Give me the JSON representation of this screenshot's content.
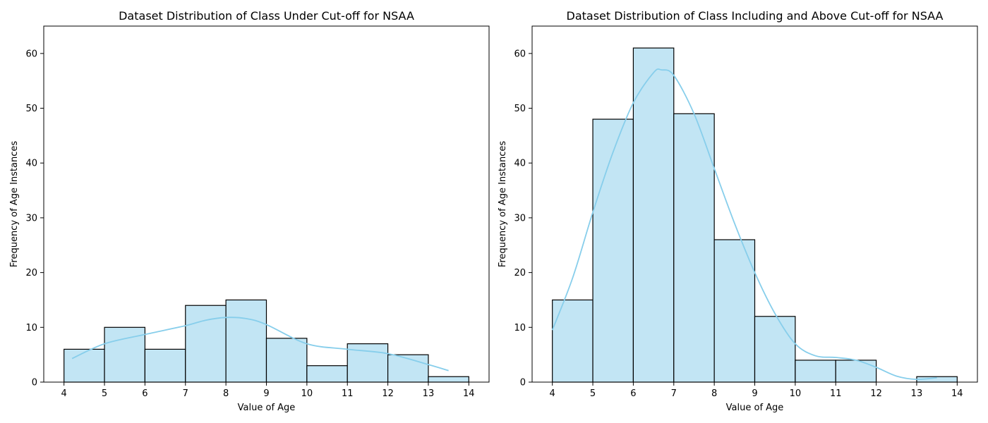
{
  "chart_data": [
    {
      "type": "bar",
      "subtype": "histogram",
      "title": "Dataset Distribution of Class Under Cut-off for NSAA",
      "xlabel": "Value of Age",
      "ylabel": "Frequency of Age Instances",
      "bin_edges": [
        4,
        5,
        6,
        7,
        8,
        9,
        10,
        11,
        12,
        13,
        14
      ],
      "values": [
        6,
        10,
        6,
        14,
        15,
        8,
        3,
        7,
        5,
        1
      ],
      "xlim": [
        3.5,
        14.5
      ],
      "ylim": [
        0,
        65
      ],
      "xticks": [
        4,
        5,
        6,
        7,
        8,
        9,
        10,
        11,
        12,
        13,
        14
      ],
      "yticks": [
        0,
        10,
        20,
        30,
        40,
        50,
        60
      ],
      "kde": {
        "x": [
          4.2,
          5,
          6,
          7,
          7.5,
          8,
          8.5,
          9,
          10,
          11,
          12,
          13,
          13.5
        ],
        "y": [
          4.3,
          7.0,
          8.7,
          10.3,
          11.3,
          11.8,
          11.6,
          10.5,
          7.0,
          6.0,
          5.2,
          3.2,
          2.1
        ]
      },
      "bar_fill": "#c2e5f4",
      "bar_edge": "#000000",
      "kde_color": "#87ceeb",
      "grid": false
    },
    {
      "type": "bar",
      "subtype": "histogram",
      "title": "Dataset Distribution of Class Including and Above Cut-off for NSAA",
      "xlabel": "Value of Age",
      "ylabel": "Frequency of Age Instances",
      "bin_edges": [
        4,
        5,
        6,
        7,
        8,
        9,
        10,
        11,
        12,
        13,
        14
      ],
      "values": [
        15,
        48,
        61,
        49,
        26,
        12,
        4,
        4,
        0,
        1
      ],
      "xlim": [
        3.5,
        14.5
      ],
      "ylim": [
        0,
        65
      ],
      "xticks": [
        4,
        5,
        6,
        7,
        8,
        9,
        10,
        11,
        12,
        13,
        14
      ],
      "yticks": [
        0,
        10,
        20,
        30,
        40,
        50,
        60
      ],
      "kde": {
        "x": [
          4,
          4.5,
          5,
          5.5,
          6,
          6.5,
          6.7,
          7,
          7.5,
          8,
          8.5,
          9,
          9.5,
          10,
          10.5,
          11,
          11.5,
          12,
          12.5,
          13,
          13.5
        ],
        "y": [
          9.5,
          19.0,
          31.0,
          42.0,
          51.0,
          56.5,
          57.0,
          56.0,
          49.0,
          39.0,
          29.0,
          20.0,
          12.5,
          7.0,
          4.8,
          4.5,
          4.0,
          2.7,
          1.1,
          0.5,
          0.8
        ]
      },
      "bar_fill": "#c2e5f4",
      "bar_edge": "#000000",
      "kde_color": "#87ceeb",
      "grid": false
    }
  ]
}
